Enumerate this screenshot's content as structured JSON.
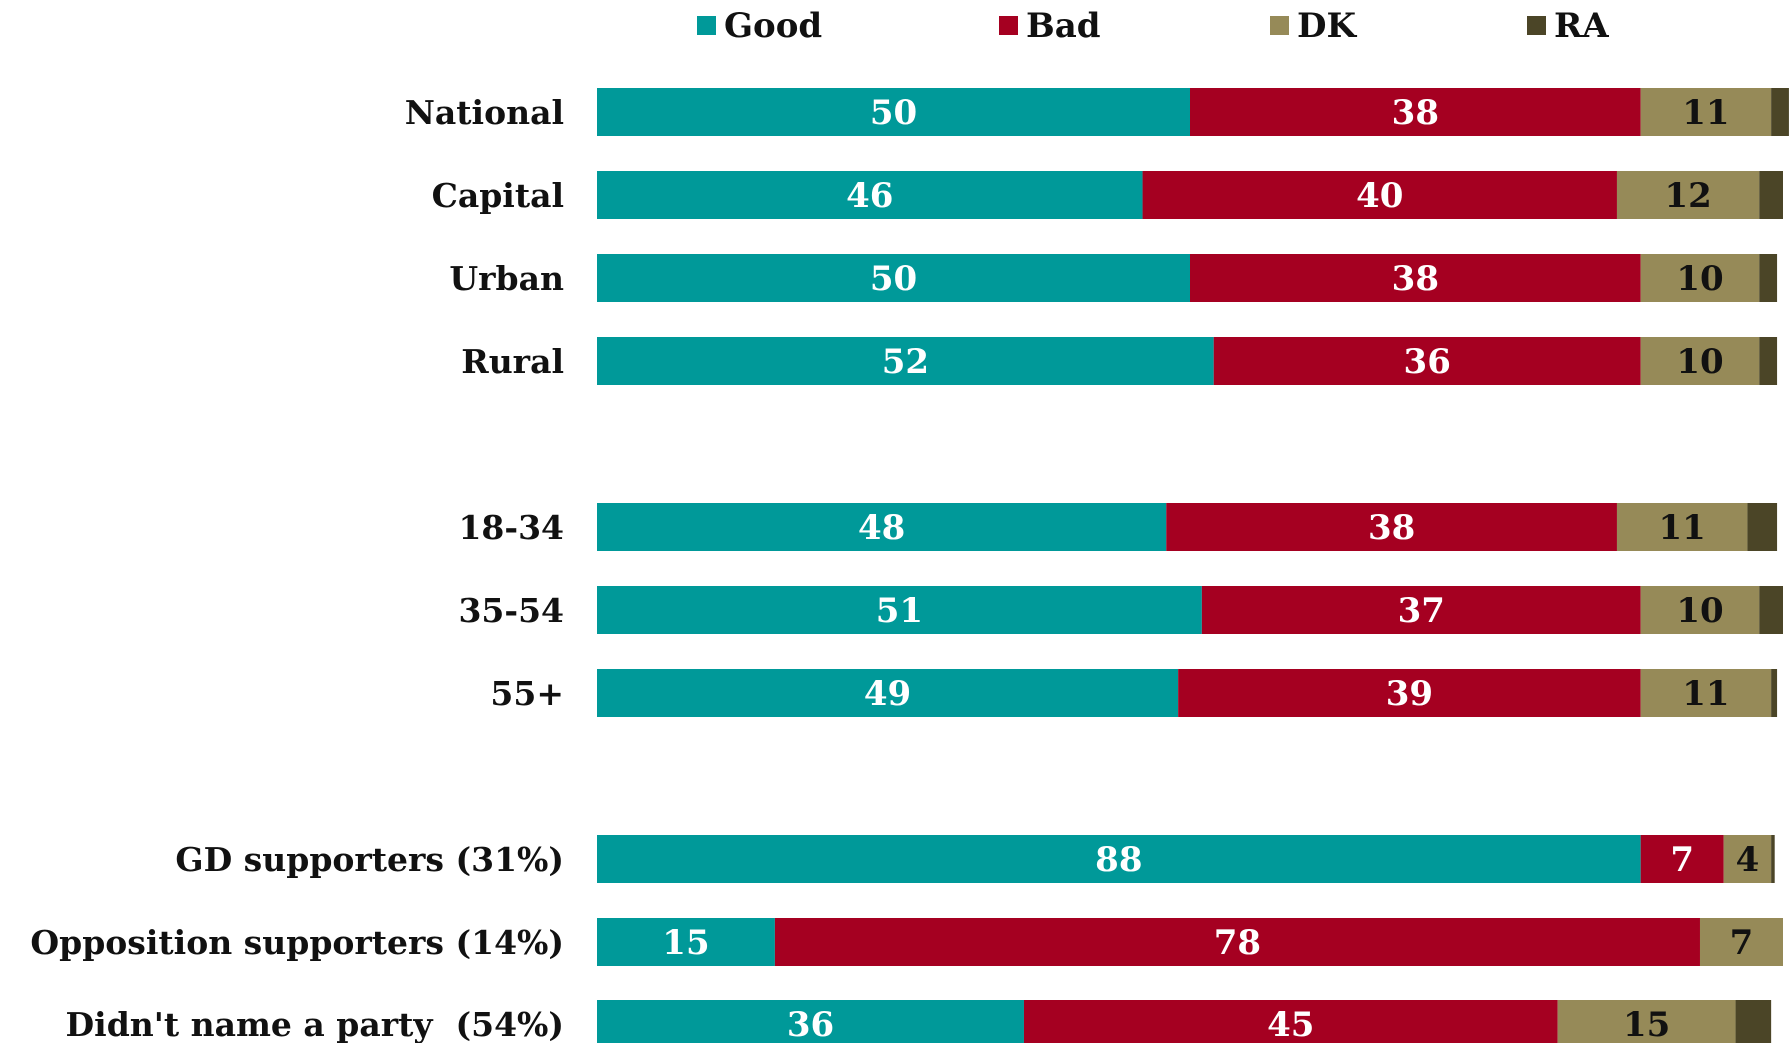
{
  "chart_data": {
    "type": "bar",
    "orientation": "horizontal",
    "stacked": true,
    "title": "",
    "xlabel": "",
    "ylabel": "",
    "xlim": [
      0,
      100
    ],
    "grid": false,
    "legend_position": "top",
    "categories": [
      "National",
      "Capital",
      "Urban",
      "Rural",
      "18-34",
      "35-54",
      "55+",
      "GD supporters (31%)",
      "Opposition supporters (14%)",
      "Didn't name a party  (54%)"
    ],
    "groups": [
      [
        "National",
        "Capital",
        "Urban",
        "Rural"
      ],
      [
        "18-34",
        "35-54",
        "55+"
      ],
      [
        "GD supporters (31%)",
        "Opposition supporters (14%)",
        "Didn't name a party  (54%)"
      ]
    ],
    "series": [
      {
        "name": "Good",
        "color": "#009999",
        "label_color": "#ffffff",
        "values": [
          50,
          46,
          50,
          52,
          48,
          51,
          49,
          88,
          15,
          36
        ]
      },
      {
        "name": "Bad",
        "color": "#a50021",
        "label_color": "#ffffff",
        "values": [
          38,
          40,
          38,
          36,
          38,
          37,
          39,
          7,
          78,
          45
        ]
      },
      {
        "name": "DK",
        "color": "#968a58",
        "label_color": "#111111",
        "values": [
          11,
          12,
          10,
          10,
          11,
          10,
          11,
          4,
          7,
          15
        ]
      },
      {
        "name": "RA",
        "color": "#4b4527",
        "label_color": "#ffffff",
        "values": [
          1.5,
          2,
          1.5,
          1.5,
          2.5,
          2,
          0.5,
          0.3,
          0,
          3
        ]
      }
    ],
    "label_series": [
      "Good",
      "Bad",
      "DK"
    ]
  }
}
